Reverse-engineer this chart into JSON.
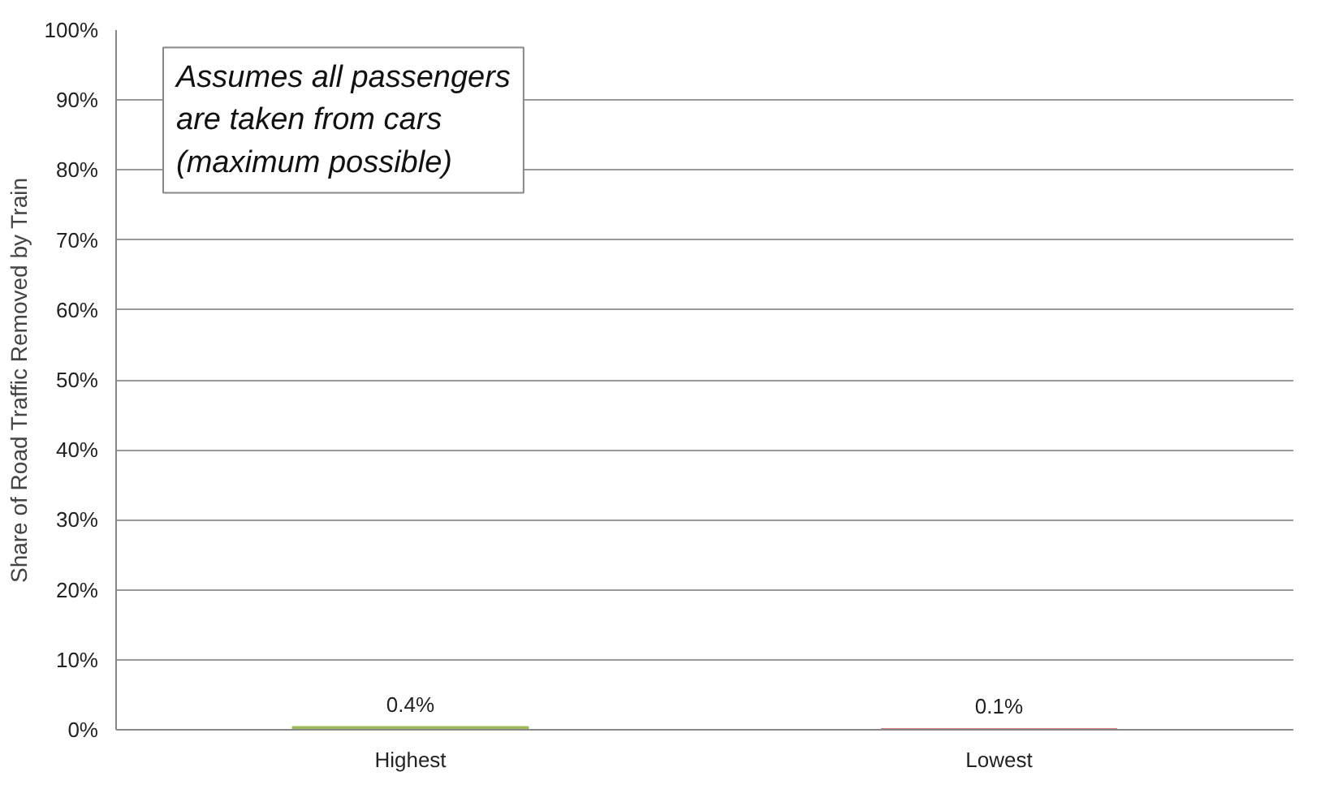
{
  "chart_data": {
    "type": "bar",
    "ylabel": "Share of Road Traffic Removed by Train",
    "categories": [
      "Highest",
      "Lowest"
    ],
    "values": [
      0.4,
      0.1
    ],
    "colors": [
      "#9bbb59",
      "#c0504d"
    ],
    "value_labels": [
      "0.4%",
      "0.1%"
    ],
    "ylim": [
      0,
      100
    ],
    "yticks": [
      {
        "value": 0,
        "label": "0%"
      },
      {
        "value": 10,
        "label": "10%"
      },
      {
        "value": 20,
        "label": "20%"
      },
      {
        "value": 30,
        "label": "30%"
      },
      {
        "value": 40,
        "label": "40%"
      },
      {
        "value": 50,
        "label": "50%"
      },
      {
        "value": 60,
        "label": "60%"
      },
      {
        "value": 70,
        "label": "70%"
      },
      {
        "value": 80,
        "label": "80%"
      },
      {
        "value": 90,
        "label": "90%"
      },
      {
        "value": 100,
        "label": "100%"
      }
    ],
    "grid": "y",
    "annotations": [
      "Assumes all passengers\nare taken from cars\n(maximum possible)"
    ]
  }
}
